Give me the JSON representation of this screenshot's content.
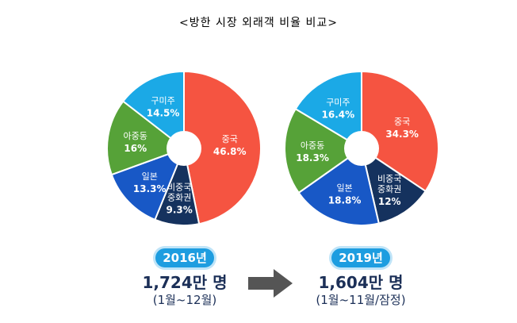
{
  "title": "<방한 시장 외래객 비율 비교>",
  "colors": {
    "china": "#f55441",
    "non_china_chinese": "#15325e",
    "japan": "#1858c6",
    "asia_middle_east": "#56a238",
    "americas_europe_oceania": "#1ba9e6",
    "badge": "#1d9de0",
    "text_dark": "#1b2f57",
    "arrow": "#555555"
  },
  "chart_data": [
    {
      "type": "pie",
      "badge": "2016년",
      "visitors": "1,724만 명",
      "period": "(1월~12월)",
      "slices": [
        {
          "label": "중국",
          "value": 46.8,
          "value_label": "46.8%",
          "color_key": "china"
        },
        {
          "label_lines": [
            "비중국",
            "중화권"
          ],
          "value": 9.3,
          "value_label": "9.3%",
          "color_key": "non_china_chinese"
        },
        {
          "label": "일본",
          "value": 13.3,
          "value_label": "13.3%",
          "color_key": "japan"
        },
        {
          "label": "아중동",
          "value": 16,
          "value_label": "16%",
          "color_key": "asia_middle_east"
        },
        {
          "label": "구미주",
          "value": 14.5,
          "value_label": "14.5%",
          "color_key": "americas_europe_oceania"
        }
      ]
    },
    {
      "type": "pie",
      "badge": "2019년",
      "visitors": "1,604만 명",
      "period": "(1월~11월/잠정)",
      "slices": [
        {
          "label": "중국",
          "value": 34.3,
          "value_label": "34.3%",
          "color_key": "china"
        },
        {
          "label_lines": [
            "비중국",
            "중화권"
          ],
          "value": 12,
          "value_label": "12%",
          "color_key": "non_china_chinese"
        },
        {
          "label": "일본",
          "value": 18.8,
          "value_label": "18.8%",
          "color_key": "japan"
        },
        {
          "label": "아중동",
          "value": 18.3,
          "value_label": "18.3%",
          "color_key": "asia_middle_east"
        },
        {
          "label": "구미주",
          "value": 16.4,
          "value_label": "16.4%",
          "color_key": "americas_europe_oceania"
        }
      ]
    }
  ]
}
